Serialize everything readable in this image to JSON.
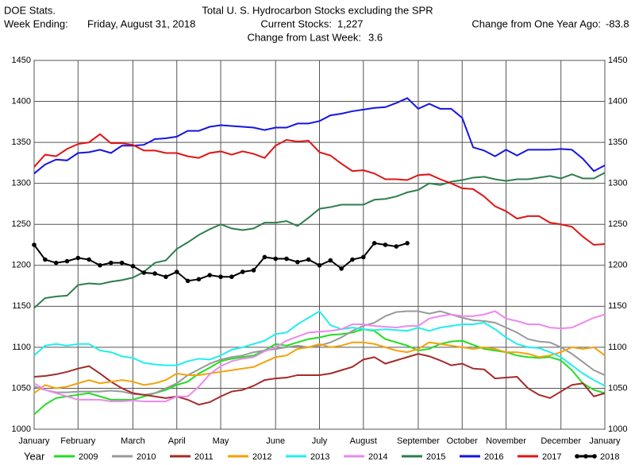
{
  "chart_data": {
    "type": "line",
    "header": {
      "left_top": "DOE Stats.",
      "week_label": "Week Ending:",
      "week_date": "Friday, August 31, 2018",
      "current_label": "Current Stocks:",
      "current_value": "1,227",
      "week_change_label": "Change from Last Week:",
      "week_change_value": "3.6",
      "year_change_label": "Change from One Year Ago:",
      "year_change_value": "-83.8"
    },
    "title": "Total U. S. Hydrocarbon Stocks excluding the SPR",
    "legend_title": "Year",
    "categories": [
      "January",
      null,
      null,
      null,
      "February",
      null,
      null,
      null,
      null,
      "March",
      null,
      null,
      null,
      "April",
      null,
      null,
      null,
      "May",
      null,
      null,
      null,
      null,
      "June",
      null,
      null,
      null,
      "July",
      null,
      null,
      null,
      "August",
      null,
      null,
      null,
      null,
      "September",
      null,
      null,
      null,
      "October",
      null,
      null,
      null,
      "November",
      null,
      null,
      null,
      null,
      "December",
      null,
      null,
      null,
      "January"
    ],
    "ylim": [
      1000,
      1450
    ],
    "yticks": [
      1000,
      1050,
      1100,
      1150,
      1200,
      1250,
      1300,
      1350,
      1400,
      1450
    ],
    "grid": true,
    "series": [
      {
        "name": "2009",
        "color": "#22dd22",
        "values": [
          1018,
          1030,
          1038,
          1040,
          1042,
          1044,
          1040,
          1036,
          1036,
          1036,
          1040,
          1044,
          1048,
          1054,
          1058,
          1068,
          1075,
          1083,
          1086,
          1088,
          1090,
          1096,
          1104,
          1102,
          1106,
          1110,
          1112,
          1115,
          1116,
          1118,
          1122,
          1120,
          1110,
          1106,
          1102,
          1096,
          1098,
          1104,
          1107,
          1108,
          1103,
          1098,
          1096,
          1094,
          1090,
          1088,
          1087,
          1088,
          1084,
          1072,
          1056,
          1048,
          1044
        ]
      },
      {
        "name": "2010",
        "color": "#999999",
        "values": [
          1052,
          1048,
          1045,
          1045,
          1046,
          1046,
          1046,
          1047,
          1046,
          1043,
          1042,
          1044,
          1050,
          1056,
          1066,
          1073,
          1080,
          1085,
          1088,
          1090,
          1094,
          1096,
          1098,
          1100,
          1102,
          1100,
          1102,
          1106,
          1112,
          1120,
          1126,
          1130,
          1138,
          1143,
          1144,
          1144,
          1141,
          1144,
          1140,
          1136,
          1133,
          1132,
          1130,
          1124,
          1118,
          1110,
          1107,
          1106,
          1100,
          1092,
          1082,
          1072,
          1066
        ]
      },
      {
        "name": "2011",
        "color": "#a52a2a",
        "values": [
          1064,
          1065,
          1067,
          1070,
          1074,
          1077,
          1068,
          1058,
          1050,
          1044,
          1042,
          1040,
          1038,
          1040,
          1036,
          1030,
          1033,
          1040,
          1046,
          1048,
          1053,
          1060,
          1062,
          1063,
          1066,
          1066,
          1066,
          1068,
          1072,
          1076,
          1085,
          1088,
          1080,
          1084,
          1088,
          1092,
          1089,
          1084,
          1078,
          1080,
          1074,
          1073,
          1062,
          1063,
          1064,
          1050,
          1042,
          1038,
          1046,
          1054,
          1056,
          1040,
          1044
        ]
      },
      {
        "name": "2012",
        "color": "#f4a20a",
        "values": [
          1044,
          1054,
          1050,
          1052,
          1056,
          1060,
          1056,
          1058,
          1060,
          1058,
          1054,
          1056,
          1060,
          1068,
          1066,
          1066,
          1068,
          1070,
          1072,
          1074,
          1076,
          1082,
          1088,
          1090,
          1098,
          1100,
          1104,
          1100,
          1102,
          1106,
          1106,
          1104,
          1100,
          1096,
          1094,
          1098,
          1106,
          1104,
          1102,
          1100,
          1098,
          1100,
          1098,
          1094,
          1094,
          1092,
          1088,
          1090,
          1094,
          1100,
          1098,
          1100,
          1090
        ]
      },
      {
        "name": "2013",
        "color": "#22eeee",
        "values": [
          1090,
          1102,
          1104,
          1102,
          1104,
          1104,
          1096,
          1094,
          1089,
          1087,
          1081,
          1079,
          1078,
          1078,
          1083,
          1086,
          1085,
          1090,
          1097,
          1100,
          1104,
          1108,
          1116,
          1118,
          1128,
          1136,
          1144,
          1127,
          1122,
          1124,
          1122,
          1121,
          1122,
          1121,
          1120,
          1124,
          1120,
          1124,
          1126,
          1128,
          1128,
          1130,
          1122,
          1112,
          1104,
          1100,
          1099,
          1094,
          1088,
          1078,
          1068,
          1060,
          1053
        ]
      },
      {
        "name": "2014",
        "color": "#ee88ee",
        "values": [
          1056,
          1048,
          1044,
          1040,
          1036,
          1036,
          1036,
          1034,
          1034,
          1035,
          1034,
          1034,
          1034,
          1040,
          1040,
          1052,
          1067,
          1077,
          1083,
          1086,
          1088,
          1095,
          1100,
          1108,
          1113,
          1118,
          1119,
          1120,
          1122,
          1128,
          1128,
          1126,
          1125,
          1124,
          1126,
          1126,
          1135,
          1138,
          1140,
          1138,
          1138,
          1140,
          1144,
          1135,
          1132,
          1128,
          1128,
          1124,
          1123,
          1124,
          1130,
          1136,
          1140
        ]
      },
      {
        "name": "2015",
        "color": "#2e7d4f",
        "values": [
          1148,
          1160,
          1162,
          1163,
          1176,
          1178,
          1177,
          1180,
          1182,
          1185,
          1192,
          1203,
          1206,
          1220,
          1228,
          1237,
          1244,
          1250,
          1245,
          1243,
          1245,
          1252,
          1252,
          1254,
          1248,
          1258,
          1269,
          1271,
          1274,
          1274,
          1274,
          1280,
          1281,
          1284,
          1289,
          1292,
          1300,
          1298,
          1302,
          1304,
          1307,
          1308,
          1305,
          1303,
          1305,
          1305,
          1307,
          1309,
          1306,
          1311,
          1306,
          1306,
          1313
        ]
      },
      {
        "name": "2016",
        "color": "#1515e0",
        "values": [
          1312,
          1323,
          1329,
          1328,
          1337,
          1338,
          1341,
          1337,
          1346,
          1346,
          1347,
          1354,
          1355,
          1357,
          1364,
          1364,
          1369,
          1371,
          1370,
          1369,
          1368,
          1365,
          1368,
          1368,
          1373,
          1373,
          1376,
          1383,
          1385,
          1388,
          1390,
          1392,
          1393,
          1398,
          1404,
          1391,
          1397,
          1391,
          1391,
          1380,
          1344,
          1340,
          1333,
          1341,
          1334,
          1341,
          1341,
          1341,
          1342,
          1341,
          1330,
          1315,
          1322
        ]
      },
      {
        "name": "2017",
        "color": "#e01515",
        "values": [
          1320,
          1335,
          1333,
          1342,
          1348,
          1350,
          1360,
          1349,
          1349,
          1347,
          1340,
          1340,
          1337,
          1337,
          1333,
          1331,
          1337,
          1339,
          1335,
          1339,
          1336,
          1331,
          1346,
          1353,
          1351,
          1352,
          1338,
          1334,
          1324,
          1315,
          1316,
          1312,
          1305,
          1305,
          1304,
          1310,
          1311,
          1305,
          1300,
          1294,
          1293,
          1284,
          1272,
          1266,
          1257,
          1260,
          1260,
          1252,
          1250,
          1247,
          1235,
          1225,
          1226
        ]
      },
      {
        "name": "2018",
        "color": "#000000",
        "marker": "circle",
        "values": [
          1225,
          1207,
          1203,
          1205,
          1209,
          1207,
          1200,
          1203,
          1203,
          1199,
          1191,
          1190,
          1186,
          1192,
          1181,
          1183,
          1188,
          1186,
          1186,
          1192,
          1194,
          1210,
          1208,
          1208,
          1204,
          1207,
          1200,
          1206,
          1196,
          1207,
          1210,
          1227,
          1225,
          1223,
          1227,
          null,
          null,
          null,
          null,
          null,
          null,
          null,
          null,
          null,
          null,
          null,
          null,
          null,
          null,
          null,
          null,
          null,
          null
        ]
      }
    ]
  }
}
